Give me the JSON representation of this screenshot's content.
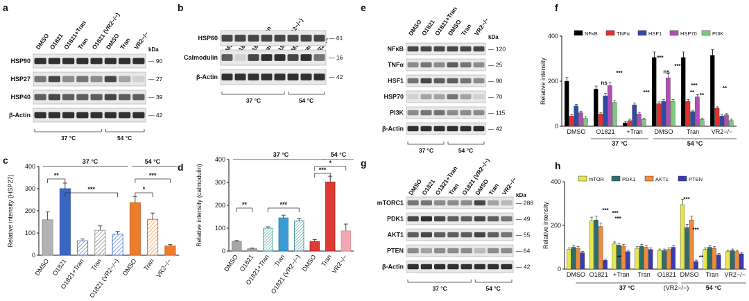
{
  "panels": {
    "a": {
      "letter": "a",
      "lanes": [
        "DMSO",
        "O1821",
        "O1821+Tran",
        "Tran",
        "O1821 (VR2−/−)",
        "DMSO",
        "Tran",
        "VR2−/−"
      ],
      "kda": "kDa",
      "bands": [
        {
          "label": "HSP90",
          "mw": "90"
        },
        {
          "label": "HSP27",
          "mw": "27"
        },
        {
          "label": "HSP40",
          "mw": "39"
        },
        {
          "label": "β-Actin",
          "mw": "42"
        }
      ],
      "temp_left": "37 °C",
      "temp_right": "54 °C"
    },
    "b": {
      "letter": "b",
      "lanes": [
        "DMSO",
        "O1821",
        "O1821+Tran",
        "Tran",
        "O1821 (VR2−/−)",
        "DMSO",
        "Tran",
        "VR2−/−"
      ],
      "bands": [
        {
          "label": "HSP60",
          "mw": "61"
        },
        {
          "label": "Calmodulin",
          "mw": "16"
        },
        {
          "label": "β-Actin",
          "mw": "42"
        }
      ],
      "temp_left": "37 °C",
      "temp_right": "54 °C"
    },
    "e": {
      "letter": "e",
      "lanes": [
        "DMSO",
        "O1821",
        "O1821+Tran",
        "DMSO",
        "Tran",
        "VR2−/−"
      ],
      "kda": "kDa",
      "bands": [
        {
          "label": "NFκB",
          "mw": "120"
        },
        {
          "label": "TNFα",
          "mw": "25"
        },
        {
          "label": "HSF1",
          "mw": "90"
        },
        {
          "label": "HSP70",
          "mw": "70"
        },
        {
          "label": "PI3K",
          "mw": "115"
        },
        {
          "label": "β-Actin",
          "mw": "42"
        }
      ],
      "temp_left": "37 °C",
      "temp_right": "54 °C"
    },
    "g": {
      "letter": "g",
      "lanes": [
        "DMSO",
        "O1821",
        "O1821+Tran",
        "Tran",
        "O1821 (VR2−/−)",
        "DMSO",
        "Tran",
        "VR2−/−"
      ],
      "kda": "kDa",
      "bands": [
        {
          "label": "mTORC1",
          "mw": "288"
        },
        {
          "label": "PDK1",
          "mw": "49"
        },
        {
          "label": "AKT1",
          "mw": "55"
        },
        {
          "label": "PTEN",
          "mw": "64"
        },
        {
          "label": "β-Actin",
          "mw": "42"
        }
      ],
      "temp_left": "37 °C",
      "temp_right": "54 °C"
    },
    "c": {
      "letter": "c",
      "sig": [
        "**",
        "***",
        "*",
        "***"
      ],
      "temp_left": "37 °C",
      "temp_right": "54 °C"
    },
    "d": {
      "letter": "d",
      "sig": [
        "**",
        "***",
        "***",
        "*"
      ],
      "temp_left": "37 °C",
      "temp_right": "54 °C"
    },
    "f": {
      "letter": "f",
      "sig": [
        "ns",
        "***",
        "***",
        "***",
        "ns",
        "***",
        "**",
        "***",
        "**",
        "**"
      ],
      "temp_left": "37 °C",
      "temp_right": "54 °C"
    },
    "h": {
      "letter": "h",
      "sig": [
        "***",
        "***",
        "***",
        "**",
        "***",
        "***",
        "**"
      ],
      "temp_left": "37 °C",
      "temp_right": "54 °C",
      "sub": "(VR2−/−)"
    }
  },
  "chart_data": [
    {
      "id": "c",
      "type": "bar",
      "title": "",
      "ylabel": "Relative intensity (HSP27)",
      "categories": [
        "DMSO",
        "O1821",
        "O1821+Tran",
        "Tran",
        "O1821 (VR2−/−)",
        "DMSO",
        "Tran",
        "VR2−/−"
      ],
      "values": [
        160,
        300,
        65,
        112,
        95,
        237,
        162,
        42
      ],
      "errors": [
        35,
        25,
        8,
        20,
        12,
        28,
        28,
        6
      ],
      "colors": [
        "#b3b3b3",
        "#3a67c2",
        "#ffffff",
        "#d9d9d9",
        "#ffffff",
        "#ec7d2c",
        "#d7ae80",
        "#ec7d2c"
      ],
      "ylim": [
        0,
        400
      ],
      "yticks": [
        0,
        100,
        200,
        300,
        400
      ]
    },
    {
      "id": "d",
      "type": "bar",
      "title": "",
      "ylabel": "Relative intensity (calmodulin)",
      "categories": [
        "DMSO",
        "O1821",
        "O1821+Tran",
        "Tran",
        "O1821 (VR2−/−)",
        "DMSO",
        "Tran",
        "VR2−/−"
      ],
      "values": [
        42,
        10,
        100,
        145,
        132,
        42,
        302,
        88
      ],
      "errors": [
        4,
        3,
        6,
        12,
        10,
        8,
        25,
        30
      ],
      "colors": [
        "#a6a6a6",
        "#a6a6a6",
        "#7fcfc9",
        "#3c9bd2",
        "#5aa9c4",
        "#de3b32",
        "#de3b32",
        "#f2a7b5"
      ],
      "ylim": [
        0,
        400
      ],
      "yticks": [
        0,
        100,
        200,
        300,
        400
      ]
    },
    {
      "id": "f",
      "type": "bar",
      "title": "",
      "ylabel": "Relative intensity",
      "categories": [
        "DMSO",
        "O1821",
        "+Tran",
        "DMSO",
        "Tran",
        "VR2−/−"
      ],
      "series": [
        {
          "name": "NFκB",
          "color": "#000000",
          "values": [
            200,
            165,
            15,
            305,
            305,
            315
          ]
        },
        {
          "name": "TNFα",
          "color": "#e5302a",
          "values": [
            45,
            55,
            25,
            100,
            110,
            80
          ]
        },
        {
          "name": "HSF1",
          "color": "#2f4aa8",
          "values": [
            90,
            135,
            95,
            110,
            65,
            45
          ]
        },
        {
          "name": "HSP70",
          "color": "#b04fb3",
          "values": [
            60,
            180,
            55,
            215,
            130,
            50
          ]
        },
        {
          "name": "PI3K",
          "color": "#7fc97f",
          "values": [
            35,
            105,
            30,
            110,
            30,
            25
          ]
        }
      ],
      "ylim": [
        0,
        400
      ],
      "yticks": [
        0,
        200,
        400
      ]
    },
    {
      "id": "h",
      "type": "bar",
      "title": "",
      "ylabel": "Relative intensity",
      "categories": [
        "DMSO",
        "O1821",
        "+Tran",
        "Tran",
        "O1821",
        "DMSO",
        "Tran",
        "VR2−/−"
      ],
      "series": [
        {
          "name": "mTOR",
          "color": "#e6e64e",
          "values": [
            90,
            220,
            115,
            95,
            85,
            295,
            90,
            80
          ]
        },
        {
          "name": "PDK1",
          "color": "#2e6e6a",
          "values": [
            100,
            225,
            110,
            105,
            85,
            190,
            100,
            85
          ]
        },
        {
          "name": "AKT1",
          "color": "#f08a3c",
          "values": [
            95,
            195,
            105,
            100,
            90,
            225,
            95,
            80
          ]
        },
        {
          "name": "PTEN",
          "color": "#3a3bb0",
          "values": [
            75,
            40,
            80,
            90,
            100,
            35,
            65,
            70
          ]
        }
      ],
      "ylim": [
        0,
        400
      ],
      "yticks": [
        0,
        200,
        400
      ]
    }
  ]
}
